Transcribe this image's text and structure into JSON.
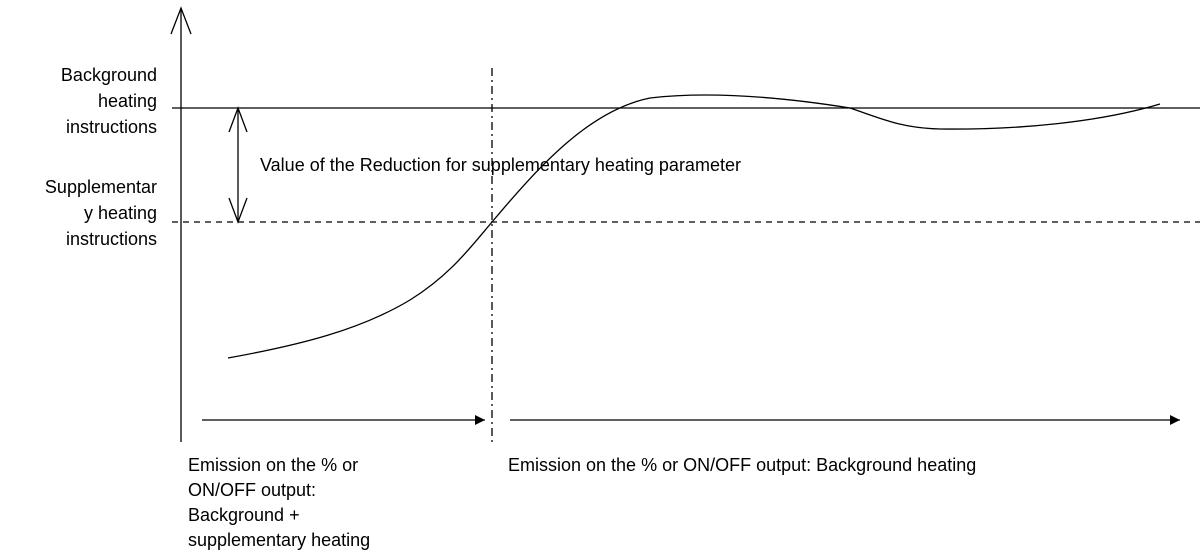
{
  "labels": {
    "background_instructions": [
      "Background",
      "heating",
      "instructions"
    ],
    "supplementary_instructions": [
      "Supplementar",
      "y heating",
      "instructions"
    ],
    "reduction": "Value of the Reduction for supplementary heating parameter",
    "emission_left": [
      "Emission on the % or",
      "ON/OFF output:",
      "Background +",
      "supplementary heating"
    ],
    "emission_right": "Emission on the % or ON/OFF output: Background heating"
  }
}
